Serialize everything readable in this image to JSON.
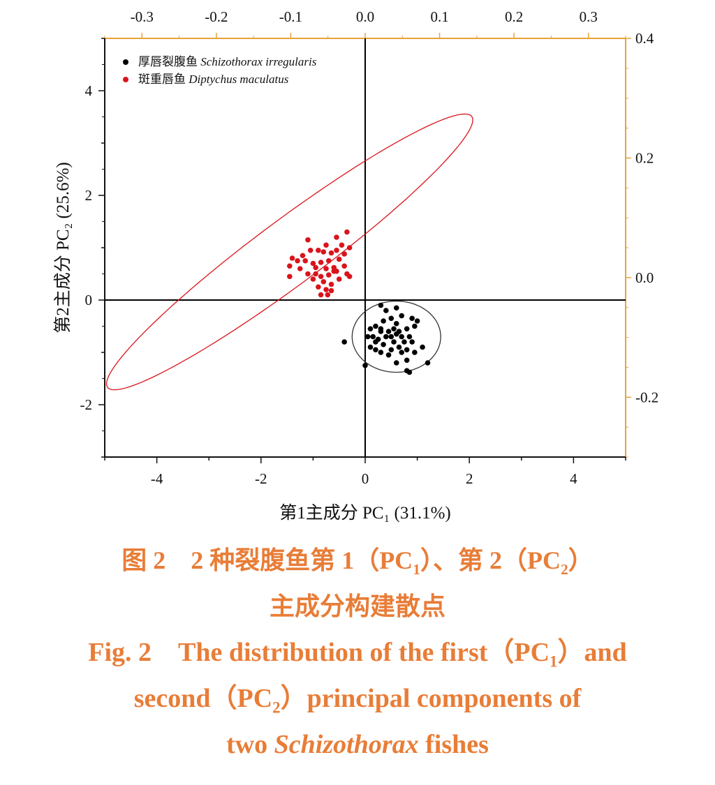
{
  "chart_data": {
    "type": "scatter",
    "xlabel": "第1主成分 PC₁ (31.1%)",
    "ylabel": "第2主成分 PC₂ (25.6%)",
    "xlim": [
      -5,
      5
    ],
    "ylim": [
      -3,
      5
    ],
    "x_ticks": [
      -4,
      -2,
      0,
      2,
      4
    ],
    "y_ticks": [
      -2,
      0,
      2,
      4
    ],
    "top_axis": {
      "lim": [
        -0.35,
        0.35
      ],
      "ticks": [
        "-0.3",
        "-0.2",
        "-0.1",
        "0.0",
        "0.1",
        "0.2",
        "0.3"
      ],
      "values": [
        -0.3,
        -0.2,
        -0.1,
        0.0,
        0.1,
        0.2,
        0.3
      ],
      "color": "#e8a23a"
    },
    "right_axis": {
      "lim": [
        -0.3,
        0.4
      ],
      "ticks": [
        "0.4",
        "0.2",
        "0.0",
        "-0.2"
      ],
      "values": [
        0.4,
        0.2,
        0.0,
        -0.2
      ],
      "color": "#e8a23a"
    },
    "legend": {
      "position": "top-left"
    },
    "series": [
      {
        "name": "厚唇裂腹鱼 Schizothorax irregularis",
        "name_cn": "厚唇裂腹鱼",
        "name_latin": "Schizothorax irregularis",
        "color": "#000000",
        "points": [
          [
            0.3,
            -0.1
          ],
          [
            0.4,
            -0.2
          ],
          [
            0.6,
            -0.15
          ],
          [
            0.7,
            -0.3
          ],
          [
            0.9,
            -0.35
          ],
          [
            1.0,
            -0.4
          ],
          [
            0.5,
            -0.35
          ],
          [
            0.35,
            -0.4
          ],
          [
            0.2,
            -0.5
          ],
          [
            0.1,
            -0.55
          ],
          [
            0.3,
            -0.55
          ],
          [
            0.45,
            -0.6
          ],
          [
            0.55,
            -0.55
          ],
          [
            0.65,
            -0.6
          ],
          [
            0.8,
            -0.55
          ],
          [
            0.95,
            -0.5
          ],
          [
            0.15,
            -0.7
          ],
          [
            0.25,
            -0.75
          ],
          [
            0.4,
            -0.7
          ],
          [
            0.5,
            -0.7
          ],
          [
            0.6,
            -0.65
          ],
          [
            0.7,
            -0.7
          ],
          [
            0.85,
            -0.7
          ],
          [
            0.05,
            -0.7
          ],
          [
            0.2,
            -0.8
          ],
          [
            0.35,
            -0.85
          ],
          [
            0.55,
            -0.8
          ],
          [
            0.75,
            -0.8
          ],
          [
            0.9,
            -0.8
          ],
          [
            -0.4,
            -0.8
          ],
          [
            0.1,
            -0.9
          ],
          [
            0.2,
            -0.95
          ],
          [
            0.5,
            -0.95
          ],
          [
            0.65,
            -0.9
          ],
          [
            0.8,
            -0.95
          ],
          [
            1.1,
            -0.9
          ],
          [
            0.3,
            -1.0
          ],
          [
            0.45,
            -1.05
          ],
          [
            0.7,
            -1.0
          ],
          [
            0.95,
            -1.0
          ],
          [
            0.8,
            -1.15
          ],
          [
            0.0,
            -1.25
          ],
          [
            0.6,
            -1.2
          ],
          [
            1.2,
            -1.2
          ],
          [
            0.8,
            -1.35
          ],
          [
            0.85,
            -1.38
          ],
          [
            0.3,
            -0.6
          ],
          [
            0.6,
            -0.45
          ]
        ],
        "ellipse": {
          "cx": 0.6,
          "cy": -0.7,
          "rx": 0.85,
          "ry": 0.68,
          "angle_deg": 0
        }
      },
      {
        "name": "斑重唇鱼 Diptychus maculatus",
        "name_cn": "斑重唇鱼",
        "name_latin": "Diptychus maculatus",
        "color": "#d9141b",
        "points": [
          [
            -0.55,
            1.2
          ],
          [
            -0.35,
            1.3
          ],
          [
            -1.1,
            1.15
          ],
          [
            -0.75,
            1.05
          ],
          [
            -0.45,
            1.05
          ],
          [
            -0.3,
            1.0
          ],
          [
            -1.05,
            0.95
          ],
          [
            -0.9,
            0.95
          ],
          [
            -0.8,
            0.92
          ],
          [
            -0.65,
            0.9
          ],
          [
            -0.55,
            0.95
          ],
          [
            -0.4,
            0.88
          ],
          [
            -1.4,
            0.8
          ],
          [
            -1.3,
            0.75
          ],
          [
            -1.15,
            0.75
          ],
          [
            -1.0,
            0.7
          ],
          [
            -0.85,
            0.72
          ],
          [
            -0.7,
            0.75
          ],
          [
            -0.5,
            0.78
          ],
          [
            -1.45,
            0.65
          ],
          [
            -1.25,
            0.6
          ],
          [
            -0.95,
            0.62
          ],
          [
            -0.75,
            0.6
          ],
          [
            -0.6,
            0.62
          ],
          [
            -0.4,
            0.65
          ],
          [
            -1.1,
            0.5
          ],
          [
            -0.95,
            0.5
          ],
          [
            -0.85,
            0.45
          ],
          [
            -0.7,
            0.48
          ],
          [
            -0.55,
            0.55
          ],
          [
            -0.35,
            0.5
          ],
          [
            -1.45,
            0.45
          ],
          [
            -1.0,
            0.4
          ],
          [
            -0.8,
            0.35
          ],
          [
            -0.65,
            0.3
          ],
          [
            -0.5,
            0.4
          ],
          [
            -0.3,
            0.45
          ],
          [
            -0.9,
            0.25
          ],
          [
            -0.75,
            0.2
          ],
          [
            -0.65,
            0.18
          ],
          [
            -0.85,
            0.1
          ],
          [
            -0.72,
            0.1
          ],
          [
            -0.6,
            0.55
          ],
          [
            -1.2,
            0.85
          ]
        ],
        "ellipse": {
          "cx": -1.45,
          "cy": 0.92,
          "rx": 4.35,
          "ry": 0.62,
          "angle_deg": 36.5
        }
      }
    ]
  },
  "caption": {
    "cn_line1": "图 2　2 种裂腹鱼第 1（PC",
    "cn_sub1": "1",
    "cn_mid": "）、第 2（PC",
    "cn_sub2": "2",
    "cn_end": "）",
    "cn_line2": "主成分构建散点",
    "en_line1_a": "Fig. 2　The distribution of the first（PC",
    "en_line1_sub": "1",
    "en_line1_b": "）and",
    "en_line2_a": "second（PC",
    "en_line2_sub": "2",
    "en_line2_b": "）principal components of",
    "en_line3_a": "two ",
    "en_line3_it": "Schizothorax",
    "en_line3_b": " fishes"
  }
}
